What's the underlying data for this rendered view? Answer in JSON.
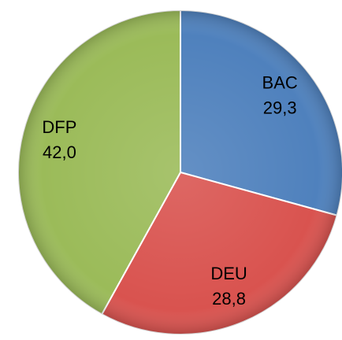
{
  "chart_data": {
    "type": "pie",
    "categories": [
      "BAC",
      "DEU",
      "DFP"
    ],
    "values": [
      29.3,
      28.8,
      42.0
    ],
    "value_labels": [
      "29,3",
      "28,8",
      "42,0"
    ],
    "colors": [
      "#4f81bd",
      "#d9534f",
      "#9bbb59"
    ]
  }
}
